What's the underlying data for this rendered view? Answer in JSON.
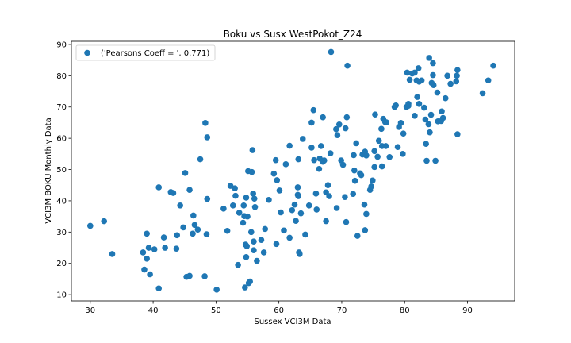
{
  "chart_data": {
    "type": "scatter",
    "title": "Boku vs Susx WestPokot_Z24",
    "xlabel": "Sussex VCI3M Data",
    "ylabel": "VCI3M BOKU Monthly Data",
    "xlim": [
      27,
      97.5
    ],
    "ylim": [
      8,
      91
    ],
    "xticks": [
      30,
      40,
      50,
      60,
      70,
      80,
      90
    ],
    "yticks": [
      10,
      20,
      30,
      40,
      50,
      60,
      70,
      80,
      90
    ],
    "grid": false,
    "legend_position": "top-left",
    "series": [
      {
        "name": "('Pearsons Coeff = ', 0.771)",
        "color": "#1f77b4",
        "points": [
          [
            30.0,
            32.0
          ],
          [
            32.2,
            33.5
          ],
          [
            33.5,
            23.0
          ],
          [
            38.4,
            23.5
          ],
          [
            38.6,
            18.0
          ],
          [
            39.0,
            21.5
          ],
          [
            39.0,
            29.5
          ],
          [
            39.3,
            25.0
          ],
          [
            39.5,
            16.5
          ],
          [
            40.2,
            24.5
          ],
          [
            40.9,
            44.3
          ],
          [
            40.9,
            12.0
          ],
          [
            41.7,
            28.3
          ],
          [
            41.9,
            25.0
          ],
          [
            42.8,
            42.8
          ],
          [
            43.2,
            42.5
          ],
          [
            43.7,
            24.7
          ],
          [
            43.8,
            29.0
          ],
          [
            44.3,
            38.5
          ],
          [
            44.8,
            31.5
          ],
          [
            45.1,
            48.9
          ],
          [
            45.3,
            15.7
          ],
          [
            45.8,
            16.0
          ],
          [
            45.8,
            43.5
          ],
          [
            46.3,
            29.5
          ],
          [
            46.4,
            35.3
          ],
          [
            46.6,
            32.3
          ],
          [
            47.1,
            30.8
          ],
          [
            47.5,
            53.3
          ],
          [
            48.2,
            15.9
          ],
          [
            48.3,
            64.9
          ],
          [
            48.5,
            29.3
          ],
          [
            48.6,
            40.6
          ],
          [
            48.6,
            60.3
          ],
          [
            50.1,
            11.6
          ],
          [
            51.2,
            37.5
          ],
          [
            51.8,
            30.4
          ],
          [
            52.3,
            44.8
          ],
          [
            52.7,
            38.5
          ],
          [
            53.0,
            44.0
          ],
          [
            53.1,
            41.6
          ],
          [
            53.5,
            19.5
          ],
          [
            53.7,
            36.2
          ],
          [
            54.3,
            33.0
          ],
          [
            54.4,
            38.5
          ],
          [
            54.5,
            35.1
          ],
          [
            54.6,
            12.3
          ],
          [
            54.7,
            26.0
          ],
          [
            54.8,
            22.0
          ],
          [
            54.8,
            41.0
          ],
          [
            54.9,
            25.5
          ],
          [
            55.0,
            35.0
          ],
          [
            55.1,
            49.5
          ],
          [
            55.2,
            13.7
          ],
          [
            55.4,
            14.2
          ],
          [
            55.6,
            30.0
          ],
          [
            55.7,
            49.2
          ],
          [
            55.8,
            56.2
          ],
          [
            55.9,
            42.3
          ],
          [
            56.0,
            27.0
          ],
          [
            56.0,
            24.2
          ],
          [
            56.1,
            40.7
          ],
          [
            56.2,
            38.0
          ],
          [
            56.5,
            20.8
          ],
          [
            57.2,
            27.5
          ],
          [
            57.6,
            23.5
          ],
          [
            57.8,
            31.0
          ],
          [
            58.4,
            40.3
          ],
          [
            59.2,
            48.7
          ],
          [
            59.5,
            53.0
          ],
          [
            59.6,
            26.2
          ],
          [
            59.7,
            46.6
          ],
          [
            60.1,
            43.3
          ],
          [
            60.3,
            36.3
          ],
          [
            60.8,
            30.5
          ],
          [
            61.1,
            51.7
          ],
          [
            61.7,
            57.6
          ],
          [
            61.7,
            28.2
          ],
          [
            62.1,
            37.0
          ],
          [
            62.5,
            38.8
          ],
          [
            62.7,
            33.6
          ],
          [
            63.0,
            44.3
          ],
          [
            63.0,
            41.9
          ],
          [
            63.1,
            41.5
          ],
          [
            63.1,
            53.3
          ],
          [
            63.2,
            23.5
          ],
          [
            63.3,
            23.0
          ],
          [
            63.5,
            36.0
          ],
          [
            63.8,
            59.8
          ],
          [
            64.2,
            29.2
          ],
          [
            64.8,
            38.5
          ],
          [
            65.2,
            57.0
          ],
          [
            65.2,
            65.0
          ],
          [
            65.5,
            69.0
          ],
          [
            65.6,
            53.0
          ],
          [
            65.9,
            42.3
          ],
          [
            66.0,
            37.2
          ],
          [
            66.4,
            50.2
          ],
          [
            66.5,
            53.5
          ],
          [
            66.7,
            57.5
          ],
          [
            67.0,
            66.7
          ],
          [
            67.0,
            52.5
          ],
          [
            67.2,
            52.9
          ],
          [
            67.5,
            42.7
          ],
          [
            67.5,
            33.5
          ],
          [
            67.8,
            45.0
          ],
          [
            68.0,
            41.5
          ],
          [
            68.2,
            55.2
          ],
          [
            68.3,
            87.6
          ],
          [
            69.1,
            62.9
          ],
          [
            69.2,
            37.7
          ],
          [
            69.3,
            61.0
          ],
          [
            69.6,
            64.4
          ],
          [
            69.9,
            52.9
          ],
          [
            70.2,
            51.5
          ],
          [
            70.5,
            41.2
          ],
          [
            70.6,
            63.2
          ],
          [
            70.7,
            33.2
          ],
          [
            70.8,
            66.7
          ],
          [
            70.9,
            83.2
          ],
          [
            71.9,
            54.6
          ],
          [
            71.8,
            42.2
          ],
          [
            72.0,
            49.7
          ],
          [
            72.1,
            46.4
          ],
          [
            72.3,
            58.4
          ],
          [
            72.5,
            28.8
          ],
          [
            72.9,
            48.8
          ],
          [
            73.1,
            48.2
          ],
          [
            73.3,
            54.8
          ],
          [
            73.6,
            38.8
          ],
          [
            73.7,
            55.7
          ],
          [
            73.7,
            30.6
          ],
          [
            73.9,
            54.5
          ],
          [
            73.9,
            35.8
          ],
          [
            74.5,
            43.5
          ],
          [
            74.7,
            44.6
          ],
          [
            74.9,
            46.5
          ],
          [
            75.2,
            55.9
          ],
          [
            75.3,
            67.6
          ],
          [
            75.2,
            50.8
          ],
          [
            75.7,
            54.1
          ],
          [
            75.9,
            59.2
          ],
          [
            76.3,
            63.0
          ],
          [
            76.4,
            51.0
          ],
          [
            76.4,
            57.5
          ],
          [
            76.6,
            66.2
          ],
          [
            76.9,
            65.2
          ],
          [
            77.0,
            57.5
          ],
          [
            77.1,
            65.1
          ],
          [
            77.6,
            54.0
          ],
          [
            78.4,
            70.0
          ],
          [
            78.6,
            70.5
          ],
          [
            78.9,
            57.2
          ],
          [
            79.1,
            63.6
          ],
          [
            79.4,
            64.9
          ],
          [
            79.7,
            55.0
          ],
          [
            79.8,
            61.5
          ],
          [
            80.3,
            70.0
          ],
          [
            80.4,
            81.0
          ],
          [
            80.6,
            70.4
          ],
          [
            80.6,
            71.0
          ],
          [
            80.8,
            78.7
          ],
          [
            81.2,
            80.7
          ],
          [
            81.6,
            67.2
          ],
          [
            81.6,
            81.0
          ],
          [
            81.9,
            78.5
          ],
          [
            82.0,
            73.2
          ],
          [
            82.2,
            82.4
          ],
          [
            82.3,
            71.0
          ],
          [
            82.3,
            78.1
          ],
          [
            82.7,
            78.5
          ],
          [
            83.1,
            69.8
          ],
          [
            83.3,
            66.0
          ],
          [
            83.4,
            58.2
          ],
          [
            83.5,
            52.8
          ],
          [
            83.8,
            64.5
          ],
          [
            83.9,
            85.7
          ],
          [
            84.0,
            61.9
          ],
          [
            84.2,
            67.5
          ],
          [
            84.3,
            77.7
          ],
          [
            84.5,
            80.2
          ],
          [
            84.5,
            84.0
          ],
          [
            84.6,
            77.0
          ],
          [
            84.9,
            52.8
          ],
          [
            85.2,
            74.6
          ],
          [
            85.3,
            65.4
          ],
          [
            85.8,
            65.5
          ],
          [
            85.9,
            68.6
          ],
          [
            86.1,
            66.5
          ],
          [
            86.5,
            72.8
          ],
          [
            86.8,
            80.0
          ],
          [
            87.3,
            77.4
          ],
          [
            88.2,
            78.2
          ],
          [
            88.3,
            80.0
          ],
          [
            88.4,
            81.8
          ],
          [
            88.4,
            61.3
          ],
          [
            92.4,
            74.4
          ],
          [
            93.3,
            78.5
          ],
          [
            94.1,
            83.2
          ]
        ]
      }
    ]
  }
}
